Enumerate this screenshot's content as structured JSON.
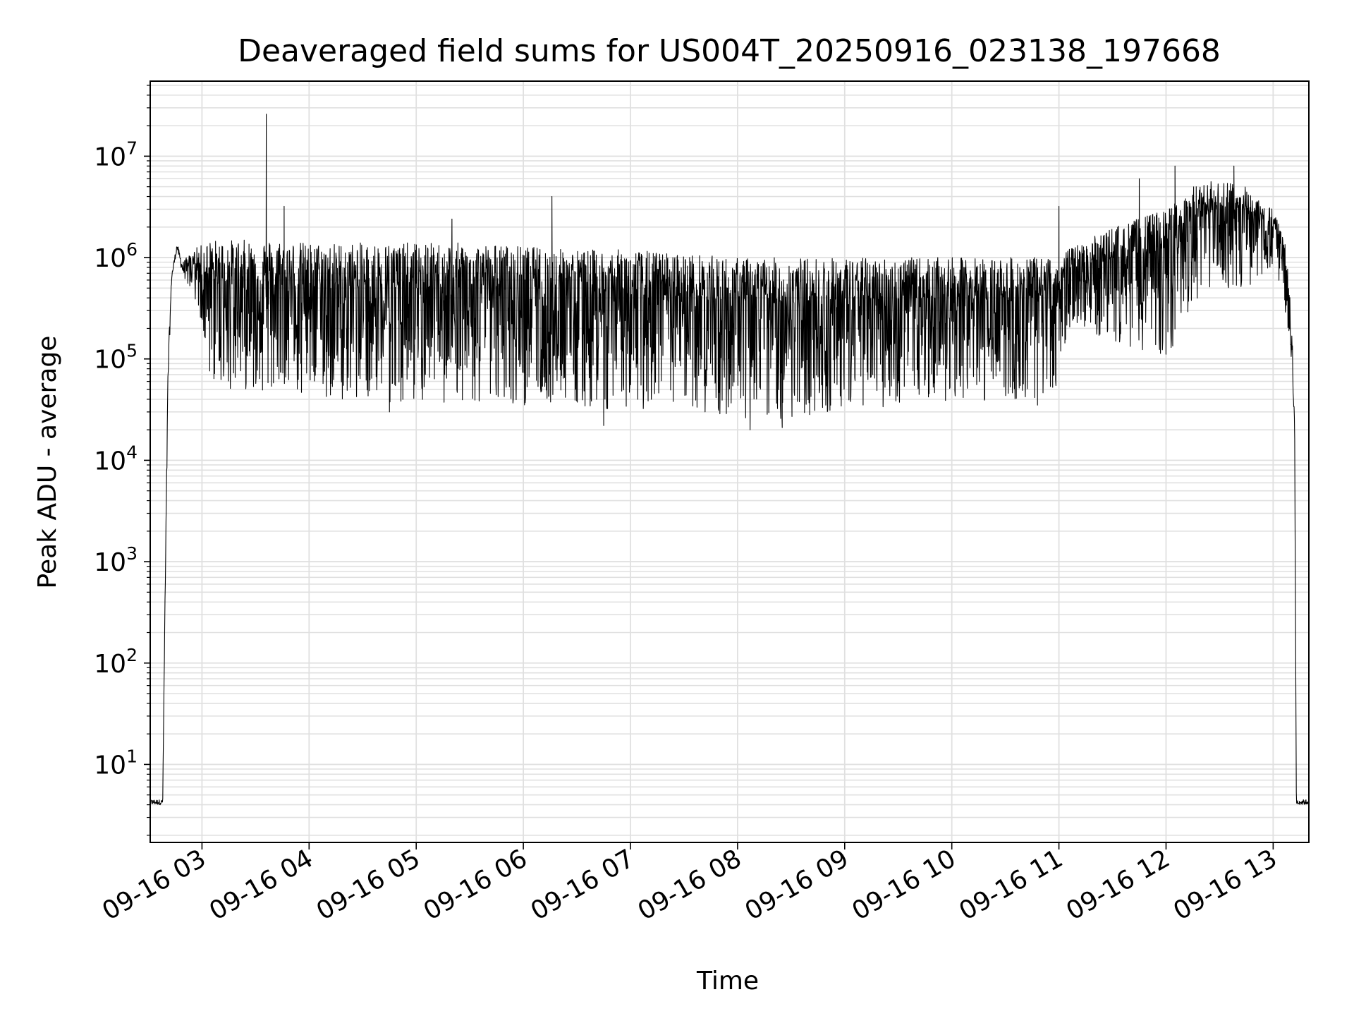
{
  "chart_data": {
    "type": "line",
    "title": "Deaveraged field sums for US004T_20250916_023138_197668",
    "xlabel": "Time",
    "ylabel": "Peak ADU - average",
    "y_scale": "log",
    "ylim": [
      1.7,
      55000000
    ],
    "xlim": [
      "09-16 02:31",
      "09-16 13:20"
    ],
    "x_ticks": [
      "09-16 03:00",
      "09-16 04:00",
      "09-16 05:00",
      "09-16 06:00",
      "09-16 07:00",
      "09-16 08:00",
      "09-16 09:00",
      "09-16 10:00",
      "09-16 11:00",
      "09-16 12:00",
      "09-16 13:00"
    ],
    "x_tick_labels": [
      "09-16 03",
      "09-16 04",
      "09-16 05",
      "09-16 06",
      "09-16 07",
      "09-16 08",
      "09-16 09",
      "09-16 10",
      "09-16 11",
      "09-16 12",
      "09-16 13"
    ],
    "y_ticks": [
      10,
      100,
      1000,
      10000,
      100000,
      1000000,
      10000000
    ],
    "y_tick_labels": [
      {
        "base": "10",
        "exp": "1"
      },
      {
        "base": "10",
        "exp": "2"
      },
      {
        "base": "10",
        "exp": "3"
      },
      {
        "base": "10",
        "exp": "4"
      },
      {
        "base": "10",
        "exp": "5"
      },
      {
        "base": "10",
        "exp": "6"
      },
      {
        "base": "10",
        "exp": "7"
      }
    ],
    "grid": true,
    "line_color": "#000000",
    "grid_color": "#e0e0e0",
    "series": [
      {
        "envelope": {
          "time": [
            "09-16 02:31",
            "09-16 02:38",
            "09-16 02:39",
            "09-16 02:41",
            "09-16 02:43",
            "09-16 02:46",
            "09-16 02:49",
            "09-16 02:55",
            "09-16 03:05",
            "09-16 03:15",
            "09-16 03:30",
            "09-16 03:45",
            "09-16 04:00",
            "09-16 04:30",
            "09-16 05:00",
            "09-16 05:30",
            "09-16 06:00",
            "09-16 06:30",
            "09-16 07:00",
            "09-16 07:30",
            "09-16 08:00",
            "09-16 08:30",
            "09-16 09:00",
            "09-16 09:30",
            "09-16 10:00",
            "09-16 10:30",
            "09-16 10:58",
            "09-16 11:05",
            "09-16 11:30",
            "09-16 12:00",
            "09-16 12:15",
            "09-16 12:30",
            "09-16 12:45",
            "09-16 13:00",
            "09-16 13:05",
            "09-16 13:08",
            "09-16 13:10",
            "09-16 13:12",
            "09-16 13:13",
            "09-16 13:20"
          ],
          "upper": [
            4.5,
            4.5,
            200,
            100000,
            700000,
            1400000,
            900000,
            1200000,
            1500000,
            1500000,
            1500000,
            1500000,
            1400000,
            1400000,
            1400000,
            1400000,
            1300000,
            1200000,
            1200000,
            1100000,
            1000000,
            1000000,
            1000000,
            1000000,
            1000000,
            1000000,
            1000000,
            1200000,
            2000000,
            3000000,
            5000000,
            6000000,
            5000000,
            3000000,
            2000000,
            1000000,
            400000,
            30000,
            4.5,
            4.5
          ],
          "lower": [
            4,
            4,
            100,
            50000,
            600000,
            1200000,
            700000,
            400000,
            60000,
            50000,
            50000,
            45000,
            40000,
            40000,
            35000,
            35000,
            35000,
            35000,
            30000,
            30000,
            25000,
            25000,
            30000,
            35000,
            38000,
            38000,
            40000,
            200000,
            150000,
            100000,
            300000,
            500000,
            500000,
            800000,
            500000,
            200000,
            100000,
            20000,
            4,
            4
          ]
        },
        "spikes": [
          {
            "time": "09-16 03:36",
            "value": 26000000
          },
          {
            "time": "09-16 03:46",
            "value": 3200000
          },
          {
            "time": "09-16 05:20",
            "value": 2400000
          },
          {
            "time": "09-16 06:16",
            "value": 4000000
          },
          {
            "time": "09-16 11:00",
            "value": 3200000
          },
          {
            "time": "09-16 11:45",
            "value": 6000000
          },
          {
            "time": "09-16 12:05",
            "value": 8000000
          },
          {
            "time": "09-16 12:38",
            "value": 8000000
          }
        ],
        "dips": [
          {
            "time": "09-16 04:45",
            "value": 30000
          },
          {
            "time": "09-16 06:45",
            "value": 22000
          },
          {
            "time": "09-16 08:07",
            "value": 20000
          },
          {
            "time": "09-16 08:25",
            "value": 21000
          },
          {
            "time": "09-16 10:48",
            "value": 35000
          }
        ]
      }
    ]
  }
}
